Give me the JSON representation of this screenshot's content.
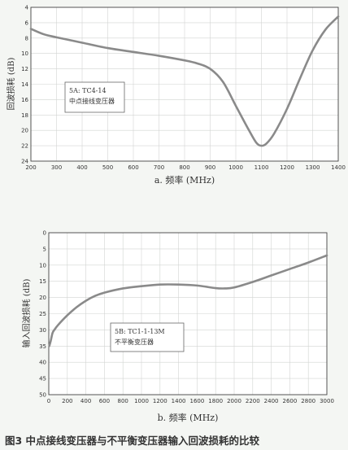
{
  "figure_caption": "图3 中点接线变压器与不平衡变压器输入回波损耗的比较",
  "chart_data": [
    {
      "type": "line",
      "xlabel": "a. 频率 (MHz)",
      "ylabel": "回波损耗 (dB)",
      "xlim": [
        200,
        1400
      ],
      "ylim": [
        4,
        24
      ],
      "y_inverted": true,
      "x_ticks": [
        200,
        300,
        400,
        500,
        600,
        700,
        800,
        900,
        1000,
        1100,
        1200,
        1300,
        1400
      ],
      "y_ticks": [
        4,
        6,
        8,
        10,
        12,
        14,
        16,
        18,
        20,
        22,
        24
      ],
      "grid": true,
      "annotation": [
        "5A: TC4-14",
        "中点接线变压器"
      ],
      "series": [
        {
          "color": "#8a8a8a",
          "x": [
            200,
            250,
            300,
            400,
            500,
            600,
            700,
            800,
            850,
            900,
            950,
            1000,
            1050,
            1080,
            1100,
            1120,
            1150,
            1200,
            1250,
            1300,
            1350,
            1400
          ],
          "y": [
            6.8,
            7.5,
            7.9,
            8.6,
            9.3,
            9.8,
            10.3,
            10.9,
            11.3,
            12.0,
            13.7,
            16.8,
            19.9,
            21.6,
            22.0,
            21.7,
            20.4,
            17.2,
            13.3,
            9.6,
            6.9,
            5.2
          ]
        }
      ]
    },
    {
      "type": "line",
      "xlabel": "b. 频率 (MHz)",
      "ylabel": "输入回波损耗 (dB)",
      "xlim": [
        0,
        3000
      ],
      "ylim": [
        0,
        50
      ],
      "y_inverted": true,
      "x_ticks": [
        0,
        200,
        400,
        600,
        800,
        1000,
        1200,
        1400,
        1600,
        1800,
        2000,
        2200,
        2400,
        2600,
        2800,
        3000
      ],
      "y_ticks": [
        0,
        5,
        10,
        15,
        20,
        25,
        30,
        35,
        40,
        45,
        50
      ],
      "grid": true,
      "annotation": [
        "5B: TC1-1-13M",
        "不平衡变压器"
      ],
      "series": [
        {
          "color": "#8a8a8a",
          "x": [
            5,
            20,
            40,
            60,
            100,
            200,
            300,
            400,
            500,
            600,
            800,
            1000,
            1200,
            1400,
            1600,
            1800,
            1900,
            2000,
            2200,
            2400,
            2600,
            2800,
            3000
          ],
          "y": [
            35,
            33.5,
            31,
            30,
            28.5,
            25.5,
            23,
            21,
            19.5,
            18.5,
            17.2,
            16.5,
            16,
            16,
            16.3,
            17.1,
            17.2,
            16.9,
            15.2,
            13.2,
            11.2,
            9.2,
            7
          ]
        }
      ]
    }
  ]
}
